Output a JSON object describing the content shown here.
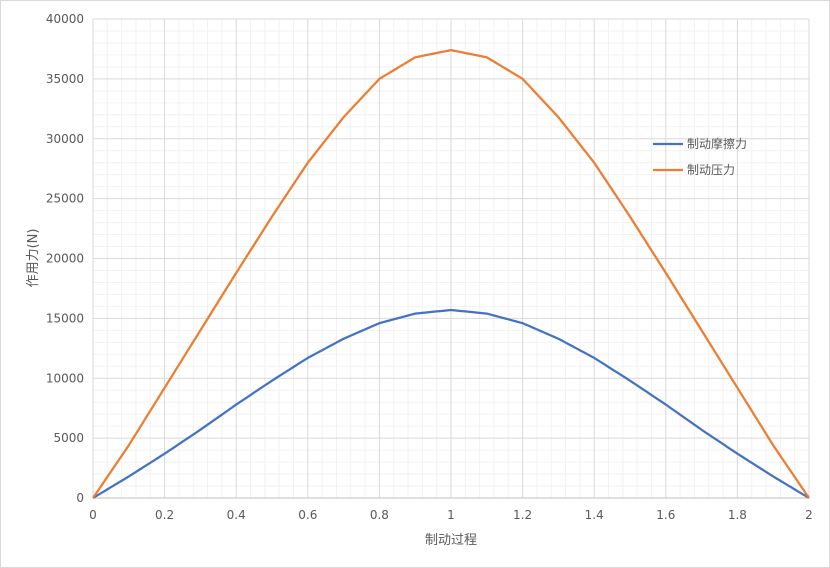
{
  "chart_data": {
    "type": "line",
    "xlabel": "制动过程",
    "ylabel": "作用力(N)",
    "xlim": [
      0,
      2
    ],
    "ylim": [
      0,
      40000
    ],
    "x_ticks": [
      "0",
      "0.2",
      "0.4",
      "0.6",
      "0.8",
      "1",
      "1.2",
      "1.4",
      "1.6",
      "1.8",
      "2"
    ],
    "y_ticks": [
      "0",
      "5000",
      "10000",
      "15000",
      "20000",
      "25000",
      "30000",
      "35000",
      "40000"
    ],
    "grid": true,
    "legend_position": "right",
    "x": [
      0,
      0.1,
      0.2,
      0.3,
      0.4,
      0.5,
      0.6,
      0.7,
      0.8,
      0.9,
      1.0,
      1.1,
      1.2,
      1.3,
      1.4,
      1.5,
      1.6,
      1.7,
      1.8,
      1.9,
      2.0
    ],
    "series": [
      {
        "name": "制动摩擦力",
        "color": "#4472c4",
        "values": [
          0,
          1800,
          3700,
          5700,
          7800,
          9800,
          11700,
          13300,
          14600,
          15400,
          15700,
          15400,
          14600,
          13300,
          11700,
          9800,
          7800,
          5700,
          3700,
          1800,
          0
        ]
      },
      {
        "name": "制动压力",
        "color": "#ed7d31",
        "values": [
          0,
          4400,
          9200,
          14000,
          18800,
          23500,
          28000,
          31800,
          35000,
          36800,
          37400,
          36800,
          35000,
          31800,
          28000,
          23500,
          18800,
          14000,
          9200,
          4400,
          0
        ]
      }
    ]
  }
}
